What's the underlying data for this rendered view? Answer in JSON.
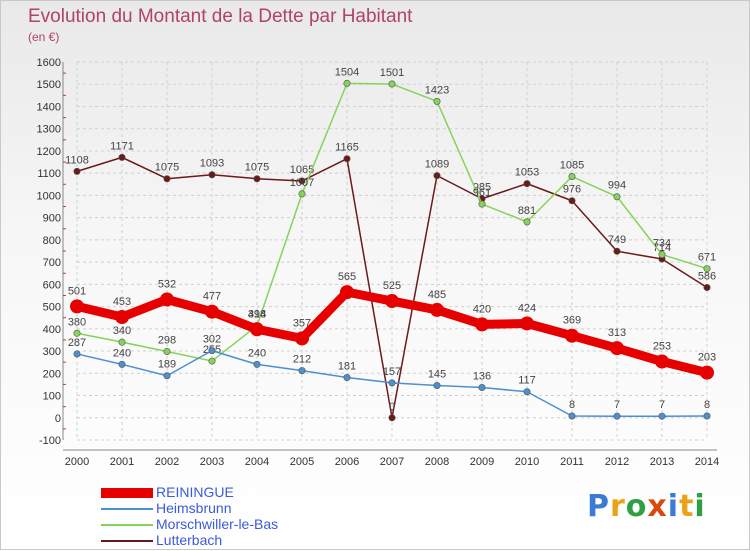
{
  "header": {
    "title": "Evolution du Montant de la Dette par Habitant",
    "unit": "(en €)"
  },
  "logo": {
    "text": "Proxiti",
    "colors": [
      "#3a7bd5",
      "#e8a317",
      "#2f9e44",
      "#d9480f",
      "#3a7bd5",
      "#e8a317",
      "#2f9e44"
    ]
  },
  "chart_data": {
    "type": "line",
    "x": [
      2000,
      2001,
      2002,
      2003,
      2004,
      2005,
      2006,
      2007,
      2008,
      2009,
      2010,
      2011,
      2012,
      2013,
      2014
    ],
    "ylim": [
      -100,
      1600
    ],
    "yticks": [
      -100,
      0,
      100,
      200,
      300,
      400,
      500,
      600,
      700,
      800,
      900,
      1000,
      1100,
      1200,
      1300,
      1400,
      1500,
      1600
    ],
    "grid": true,
    "legend_position": "bottom-left",
    "series": [
      {
        "name": "Lutterbach",
        "color": "#6b1a1a",
        "values": [
          1108,
          1171,
          1075,
          1093,
          1075,
          1065,
          1165,
          0,
          1089,
          985,
          1053,
          976,
          749,
          714,
          586
        ]
      },
      {
        "name": "Morschwiller-le-Bas",
        "color": "#86d35a",
        "values": [
          380,
          340,
          298,
          255,
          414,
          1007,
          1504,
          1501,
          1423,
          961,
          881,
          1085,
          994,
          734,
          671
        ]
      },
      {
        "name": "Heimsbrunn",
        "color": "#4d90cf",
        "values": [
          287,
          240,
          189,
          302,
          240,
          212,
          181,
          157,
          145,
          136,
          117,
          8,
          7,
          7,
          8
        ]
      },
      {
        "name": "REININGUE",
        "color": "#e60000",
        "values": [
          501,
          453,
          532,
          477,
          398,
          357,
          565,
          525,
          485,
          420,
          424,
          369,
          313,
          253,
          203
        ]
      }
    ]
  },
  "legend": [
    {
      "name": "REININGUE",
      "color": "#e60000",
      "thickness": 10,
      "label_color": "#3b5bdb"
    },
    {
      "name": "Heimsbrunn",
      "color": "#4d90cf",
      "thickness": 2,
      "label_color": "#3b5bdb"
    },
    {
      "name": "Morschwiller-le-Bas",
      "color": "#86d35a",
      "thickness": 2,
      "label_color": "#3b5bdb"
    },
    {
      "name": "Lutterbach",
      "color": "#6b1a1a",
      "thickness": 2,
      "label_color": "#3b5bdb"
    }
  ]
}
